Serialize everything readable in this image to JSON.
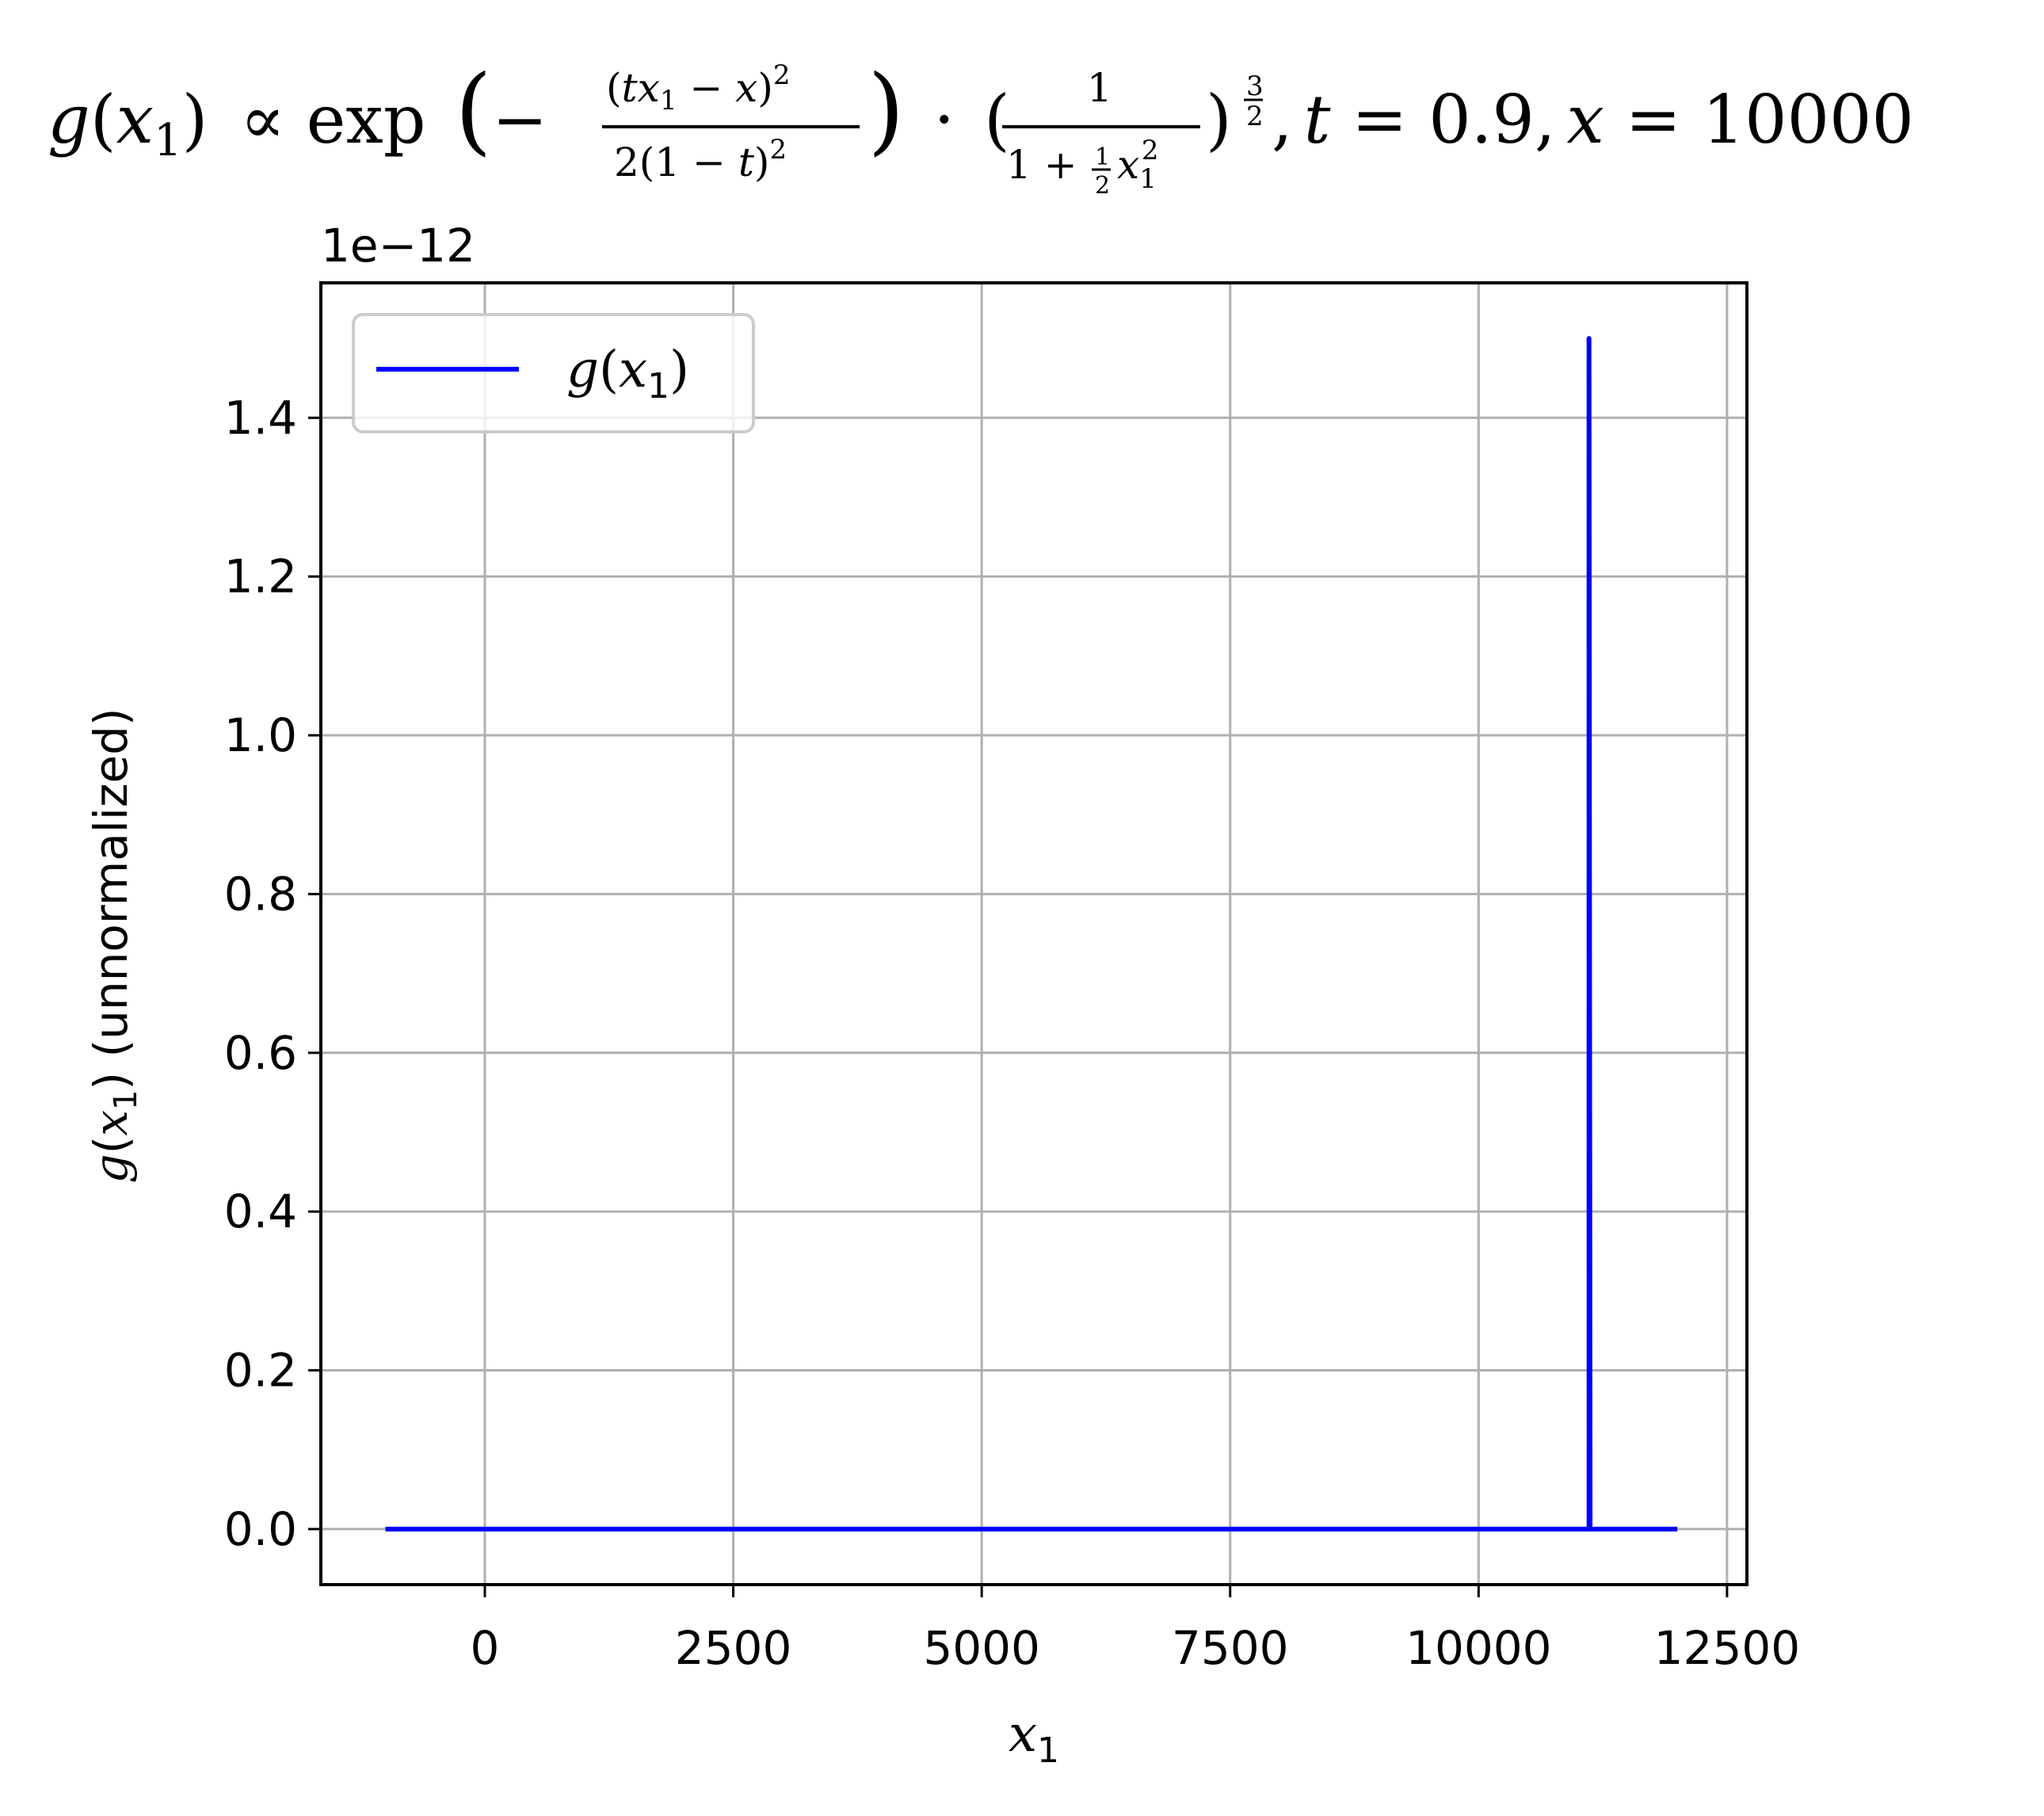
{
  "title": {
    "g": "g",
    "open1": "(",
    "x": "x",
    "sub1": "1",
    "close1": ")",
    "prop": "∝ exp",
    "big_open": "(",
    "minus": "−",
    "num_open": "(",
    "num_t": "t",
    "num_x": "x",
    "num_sub": "1",
    "num_minus": " − ",
    "num_xv": "x",
    "num_close": ")",
    "num_sq": "2",
    "den_text": "2(1 − ",
    "den_t": "t",
    "den_close": ")",
    "den_sq": "2",
    "big_close": ")",
    "dot": "·",
    "p_open": "(",
    "frac2_num": "1",
    "frac2_den_a": "1 + ",
    "frac2_den_half_num": "1",
    "frac2_den_half_den": "2",
    "frac2_den_x": "x",
    "frac2_den_sub": "1",
    "frac2_den_sq": "2",
    "p_close": ")",
    "exp_num": "3",
    "exp_den": "2",
    "comma1": ",",
    "t_var": "t",
    "t_eq": " = 0.9,",
    "x_var": "x",
    "x_eq": " = 10000"
  },
  "offset_label": "1e−12",
  "xlabel": {
    "var": "x",
    "sub": "1"
  },
  "ylabel": {
    "g": "g",
    "open": "(",
    "x": "x",
    "sub": "1",
    "close": ")",
    "rest": " (unnormalized)"
  },
  "legend": {
    "g": "g",
    "open": "(",
    "x": "x",
    "sub": "1",
    "close": ")"
  },
  "colors": {
    "line": "#0000ff",
    "grid": "#b0b0b0",
    "axes": "#000000",
    "legend_border": "#cccccc"
  },
  "chart_data": {
    "type": "line",
    "title": "g(x₁) ∝ exp(−(tx₁ − x)² / 2(1 − t)²) · (1 / (1 + ½x₁²))^(3/2), t = 0.9, x = 10000",
    "xlabel": "x₁",
    "ylabel": "g(x₁) (unnormalized)",
    "y_scale_offset": "1e−12",
    "xlim": [
      -1650,
      12700
    ],
    "ylim": [
      -0.07,
      1.57
    ],
    "xticks": [
      0,
      2500,
      5000,
      7500,
      10000,
      12500
    ],
    "xtick_labels": [
      "0",
      "2500",
      "5000",
      "7500",
      "10000",
      "12500"
    ],
    "yticks": [
      0.0,
      0.2,
      0.4,
      0.6,
      0.8,
      1.0,
      1.2,
      1.4
    ],
    "ytick_labels": [
      "0.0",
      "0.2",
      "0.4",
      "0.6",
      "0.8",
      "1.0",
      "1.2",
      "1.4"
    ],
    "grid": true,
    "legend_position": "upper left",
    "series": [
      {
        "name": "g(x₁)",
        "color": "#0000ff",
        "x": [
          -1000,
          11100,
          11111,
          11111,
          11122,
          12000
        ],
        "y": [
          0,
          0,
          0,
          1.5,
          0,
          0
        ]
      }
    ]
  }
}
